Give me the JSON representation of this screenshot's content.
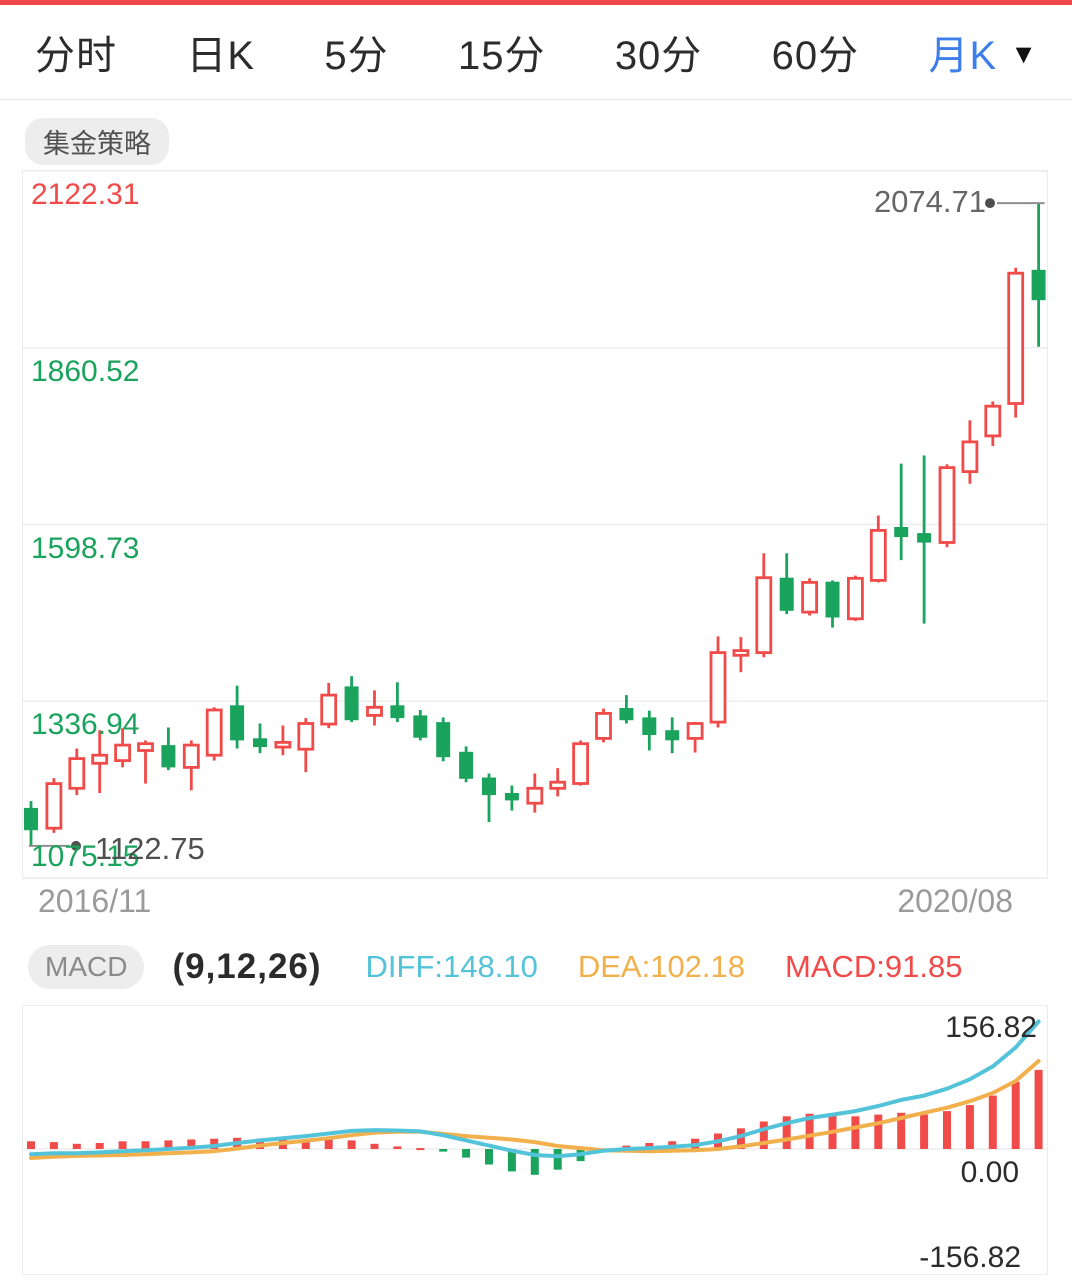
{
  "colors": {
    "up_red": "#f04a49",
    "down_green": "#1aa35d",
    "accent_blue": "#3d7eea",
    "diff_cyan": "#53c3d9",
    "dea_orange": "#f2b04c",
    "axis_gray": "#9a9a9a",
    "marker_dark": "#4f4f4f",
    "grid_gray": "#ededed",
    "top_strip_red": "#f0484c"
  },
  "tab_bar": {
    "caret": "▼",
    "tabs": [
      {
        "label": "分时",
        "active": false
      },
      {
        "label": "日K",
        "active": false
      },
      {
        "label": "5分",
        "active": false
      },
      {
        "label": "15分",
        "active": false
      },
      {
        "label": "30分",
        "active": false
      },
      {
        "label": "60分",
        "active": false
      },
      {
        "label": "月K",
        "active": true
      }
    ]
  },
  "strategy_badge": "集金策略",
  "main_chart": {
    "y_axis_labels": [
      {
        "text": "2122.31",
        "color": "red"
      },
      {
        "text": "1860.52",
        "color": "green"
      },
      {
        "text": "1598.73",
        "color": "green"
      },
      {
        "text": "1336.94",
        "color": "green"
      },
      {
        "text": "1075.15",
        "color": "green"
      }
    ],
    "x_axis_labels": [
      "2016/11",
      "2020/08"
    ],
    "high_marker": "2074.71",
    "low_marker": "1122.75"
  },
  "macd_panel": {
    "pill": "MACD",
    "params": "(9,12,26)",
    "diff_label": "DIFF:148.10",
    "dea_label": "DEA:102.18",
    "macd_label": "MACD:91.85",
    "axis_labels": [
      "156.82",
      "0.00",
      "-156.82"
    ]
  },
  "chart_data": [
    {
      "type": "candlestick",
      "title": "monthly K-line (gold)",
      "x_first": "2016/11",
      "x_last": "2020/08",
      "ylim": [
        1075.15,
        2122.31
      ],
      "gridline_values": [
        2122.31,
        1860.52,
        1598.73,
        1336.94,
        1075.15
      ],
      "high_marker_value": 2074.71,
      "low_marker_value": 1122.75,
      "candles": [
        [
          1179,
          1189,
          1122.75,
          1146
        ],
        [
          1149,
          1223,
          1142,
          1215
        ],
        [
          1208,
          1267,
          1198,
          1252
        ],
        [
          1245,
          1294,
          1201,
          1257
        ],
        [
          1249,
          1297,
          1239,
          1272
        ],
        [
          1264,
          1279,
          1215,
          1274
        ],
        [
          1272,
          1298,
          1235,
          1239
        ],
        [
          1239,
          1279,
          1205,
          1272
        ],
        [
          1257,
          1328,
          1249,
          1324
        ],
        [
          1331,
          1360,
          1267,
          1279
        ],
        [
          1282,
          1304,
          1260,
          1269
        ],
        [
          1269,
          1301,
          1257,
          1276
        ],
        [
          1266,
          1312,
          1232,
          1304
        ],
        [
          1303,
          1364,
          1297,
          1346
        ],
        [
          1359,
          1374,
          1306,
          1309
        ],
        [
          1316,
          1353,
          1301,
          1328
        ],
        [
          1331,
          1365,
          1306,
          1312
        ],
        [
          1316,
          1324,
          1279,
          1283
        ],
        [
          1306,
          1313,
          1248,
          1254
        ],
        [
          1262,
          1270,
          1217,
          1222
        ],
        [
          1224,
          1230,
          1158,
          1198
        ],
        [
          1201,
          1212,
          1175,
          1190
        ],
        [
          1186,
          1230,
          1172,
          1208
        ],
        [
          1208,
          1238,
          1196,
          1217
        ],
        [
          1215,
          1279,
          1212,
          1274
        ],
        [
          1282,
          1326,
          1276,
          1319
        ],
        [
          1327,
          1346,
          1304,
          1309
        ],
        [
          1313,
          1323,
          1264,
          1287
        ],
        [
          1294,
          1313,
          1260,
          1279
        ],
        [
          1282,
          1306,
          1261,
          1304
        ],
        [
          1306,
          1433,
          1298,
          1409
        ],
        [
          1405,
          1432,
          1380,
          1412
        ],
        [
          1409,
          1556,
          1402,
          1520
        ],
        [
          1520,
          1556,
          1466,
          1471
        ],
        [
          1469,
          1519,
          1464,
          1513
        ],
        [
          1514,
          1516,
          1446,
          1461
        ],
        [
          1459,
          1523,
          1456,
          1519
        ],
        [
          1516,
          1612,
          1513,
          1590
        ],
        [
          1595,
          1689,
          1546,
          1580
        ],
        [
          1586,
          1701,
          1452,
          1572
        ],
        [
          1572,
          1688,
          1565,
          1683
        ],
        [
          1677,
          1753,
          1659,
          1721
        ],
        [
          1730,
          1781,
          1715,
          1774
        ],
        [
          1778,
          1979,
          1757,
          1971
        ],
        [
          1976,
          2074.71,
          1862,
          1931
        ]
      ]
    },
    {
      "type": "bar",
      "title": "MACD(9,12,26)",
      "ylim": [
        -156.82,
        156.82
      ],
      "diff_current": 148.1,
      "dea_current": 102.18,
      "macd_current": 91.85,
      "series": [
        {
          "name": "DIFF",
          "values": [
            -6,
            -5,
            -5,
            -4,
            -2.5,
            -1.5,
            0,
            1.5,
            3.5,
            7,
            10,
            12.5,
            15,
            18,
            21,
            22,
            21.5,
            20.5,
            16,
            10,
            4,
            -2,
            -7,
            -8.5,
            -6,
            -2,
            0,
            1,
            2.5,
            4.5,
            9,
            15,
            23,
            30,
            36,
            40,
            44,
            50,
            57,
            62,
            70,
            81,
            96,
            118,
            148.1
          ]
        },
        {
          "name": "DEA",
          "values": [
            -10.5,
            -9,
            -8,
            -7.5,
            -7,
            -6,
            -5,
            -4,
            -2.5,
            0.5,
            4,
            7,
            9.5,
            12.5,
            16,
            19,
            20,
            20,
            17.5,
            15,
            13,
            11,
            8,
            3.5,
            1,
            -1.5,
            -2,
            -2.5,
            -2,
            -1.5,
            0,
            3,
            7,
            11,
            15.5,
            20,
            25,
            30,
            36,
            42,
            48,
            55.5,
            65,
            79,
            102.18
          ]
        },
        {
          "name": "MACD",
          "values": [
            9,
            8,
            6,
            7,
            9,
            9,
            10,
            11,
            12,
            13,
            12,
            11,
            11,
            11,
            10,
            6,
            3,
            1,
            -3,
            -10,
            -18,
            -26,
            -30,
            -24,
            -14,
            -1,
            4,
            7,
            9,
            12,
            18,
            24,
            32,
            38,
            41,
            40,
            38,
            40,
            42,
            40,
            44,
            51,
            62,
            78,
            91.84
          ]
        }
      ]
    }
  ]
}
